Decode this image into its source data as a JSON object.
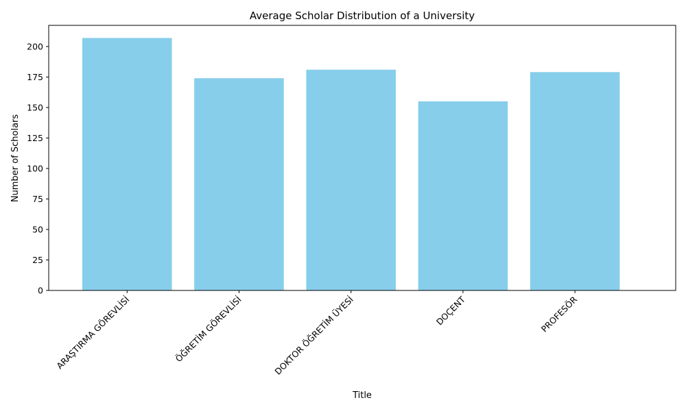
{
  "chart_data": {
    "type": "bar",
    "title": "Average Scholar Distribution of a University",
    "xlabel": "Title",
    "ylabel": "Number of Scholars",
    "categories": [
      "ARAŞTIRMA GÖREVLİSİ",
      "ÖĞRETİM GÖREVLİSİ",
      "DOKTOR ÖĞRETİM ÜYESİ",
      "DOÇENT",
      "PROFESÖR"
    ],
    "values": [
      207,
      174,
      181,
      155,
      179
    ],
    "ylim": [
      0,
      217.35
    ],
    "yticks": [
      0,
      25,
      50,
      75,
      100,
      125,
      150,
      175,
      200
    ],
    "bar_color": "#87ceeb",
    "grid": false,
    "legend": false
  }
}
